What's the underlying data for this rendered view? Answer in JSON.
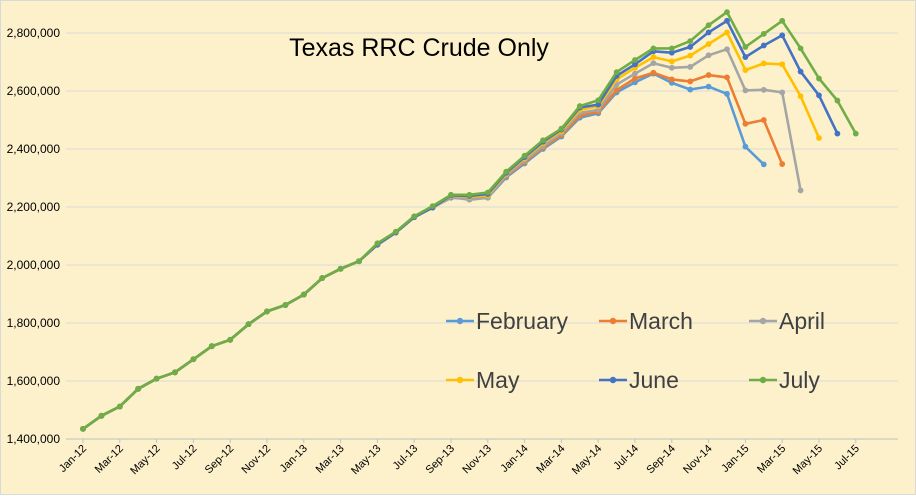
{
  "chart_data": {
    "type": "line",
    "title": "Texas RRC Crude Only",
    "xlabel": "",
    "ylabel": "",
    "ylim": [
      1400000,
      2900000
    ],
    "yticks": [
      1400000,
      1600000,
      1800000,
      2000000,
      2200000,
      2400000,
      2600000,
      2800000
    ],
    "ytick_labels": [
      "1,400,000",
      "1,600,000",
      "1,800,000",
      "2,000,000",
      "2,200,000",
      "2,400,000",
      "2,600,000",
      "2,800,000"
    ],
    "x_tick_labels": [
      "Jan-12",
      "Mar-12",
      "May-12",
      "Jul-12",
      "Sep-12",
      "Nov-12",
      "Jan-13",
      "Mar-13",
      "May-13",
      "Jul-13",
      "Sep-13",
      "Nov-13",
      "Jan-14",
      "Mar-14",
      "May-14",
      "Jul-14",
      "Sep-14",
      "Nov-14",
      "Jan-15",
      "Mar-15",
      "May-15",
      "Jul-15"
    ],
    "x_months": [
      "Jan-12",
      "Feb-12",
      "Mar-12",
      "Apr-12",
      "May-12",
      "Jun-12",
      "Jul-12",
      "Aug-12",
      "Sep-12",
      "Oct-12",
      "Nov-12",
      "Dec-12",
      "Jan-13",
      "Feb-13",
      "Mar-13",
      "Apr-13",
      "May-13",
      "Jun-13",
      "Jul-13",
      "Aug-13",
      "Sep-13",
      "Oct-13",
      "Nov-13",
      "Dec-13",
      "Jan-14",
      "Feb-14",
      "Mar-14",
      "Apr-14",
      "May-14",
      "Jun-14",
      "Jul-14",
      "Aug-14",
      "Sep-14",
      "Oct-14",
      "Nov-14",
      "Dec-14",
      "Jan-15",
      "Feb-15",
      "Mar-15",
      "Apr-15",
      "May-15",
      "Jun-15",
      "Jul-15"
    ],
    "grid": "horizontal",
    "legend_position": "lower-right",
    "series": [
      {
        "name": "February",
        "color": "#5b9bd5",
        "values": [
          1435000,
          1480000,
          1512000,
          1573000,
          1608000,
          1630000,
          1675000,
          1720000,
          1742000,
          1796000,
          1840000,
          1862000,
          1898000,
          1955000,
          1987000,
          2013000,
          2070000,
          2112000,
          2165000,
          2198000,
          2232000,
          2228000,
          2232000,
          2302000,
          2350000,
          2400000,
          2443000,
          2508000,
          2523000,
          2595000,
          2630000,
          2660000,
          2628000,
          2605000,
          2615000,
          2590000,
          2408000,
          2347000
        ]
      },
      {
        "name": "March",
        "color": "#ed7d31",
        "values": [
          1435000,
          1480000,
          1512000,
          1573000,
          1608000,
          1630000,
          1675000,
          1720000,
          1742000,
          1796000,
          1840000,
          1862000,
          1898000,
          1955000,
          1987000,
          2013000,
          2070000,
          2112000,
          2165000,
          2198000,
          2235000,
          2232000,
          2235000,
          2307000,
          2355000,
          2405000,
          2448000,
          2515000,
          2528000,
          2603000,
          2643000,
          2663000,
          2640000,
          2633000,
          2655000,
          2647000,
          2487000,
          2500000,
          2348000
        ]
      },
      {
        "name": "April",
        "color": "#a5a5a5",
        "values": [
          1435000,
          1480000,
          1512000,
          1573000,
          1608000,
          1630000,
          1675000,
          1720000,
          1742000,
          1796000,
          1840000,
          1862000,
          1898000,
          1955000,
          1987000,
          2013000,
          2070000,
          2112000,
          2165000,
          2198000,
          2235000,
          2225000,
          2232000,
          2310000,
          2360000,
          2410000,
          2455000,
          2525000,
          2535000,
          2622000,
          2660000,
          2696000,
          2680000,
          2683000,
          2723000,
          2744000,
          2602000,
          2604000,
          2595000,
          2257000
        ]
      },
      {
        "name": "May",
        "color": "#ffc000",
        "values": [
          1435000,
          1480000,
          1512000,
          1573000,
          1608000,
          1630000,
          1675000,
          1720000,
          1742000,
          1796000,
          1840000,
          1862000,
          1898000,
          1955000,
          1987000,
          2013000,
          2070000,
          2112000,
          2165000,
          2198000,
          2238000,
          2235000,
          2240000,
          2315000,
          2368000,
          2420000,
          2462000,
          2535000,
          2547000,
          2640000,
          2680000,
          2717000,
          2702000,
          2722000,
          2762000,
          2802000,
          2672000,
          2695000,
          2692000,
          2582000,
          2438000
        ]
      },
      {
        "name": "June",
        "color": "#4472c4",
        "values": [
          1435000,
          1480000,
          1512000,
          1573000,
          1608000,
          1630000,
          1675000,
          1720000,
          1742000,
          1796000,
          1840000,
          1862000,
          1898000,
          1955000,
          1987000,
          2013000,
          2070000,
          2112000,
          2165000,
          2198000,
          2240000,
          2238000,
          2245000,
          2318000,
          2372000,
          2425000,
          2467000,
          2543000,
          2553000,
          2652000,
          2692000,
          2737000,
          2732000,
          2752000,
          2802000,
          2842000,
          2717000,
          2757000,
          2792000,
          2667000,
          2585000,
          2453000
        ]
      },
      {
        "name": "July",
        "color": "#70ad47",
        "values": [
          1435000,
          1480000,
          1512000,
          1573000,
          1608000,
          1630000,
          1675000,
          1720000,
          1742000,
          1796000,
          1840000,
          1862000,
          1898000,
          1955000,
          1987000,
          2013000,
          2075000,
          2115000,
          2168000,
          2203000,
          2242000,
          2242000,
          2250000,
          2322000,
          2377000,
          2430000,
          2470000,
          2548000,
          2568000,
          2665000,
          2707000,
          2747000,
          2747000,
          2772000,
          2827000,
          2872000,
          2752000,
          2797000,
          2842000,
          2747000,
          2643000,
          2567000,
          2453000
        ]
      }
    ]
  }
}
